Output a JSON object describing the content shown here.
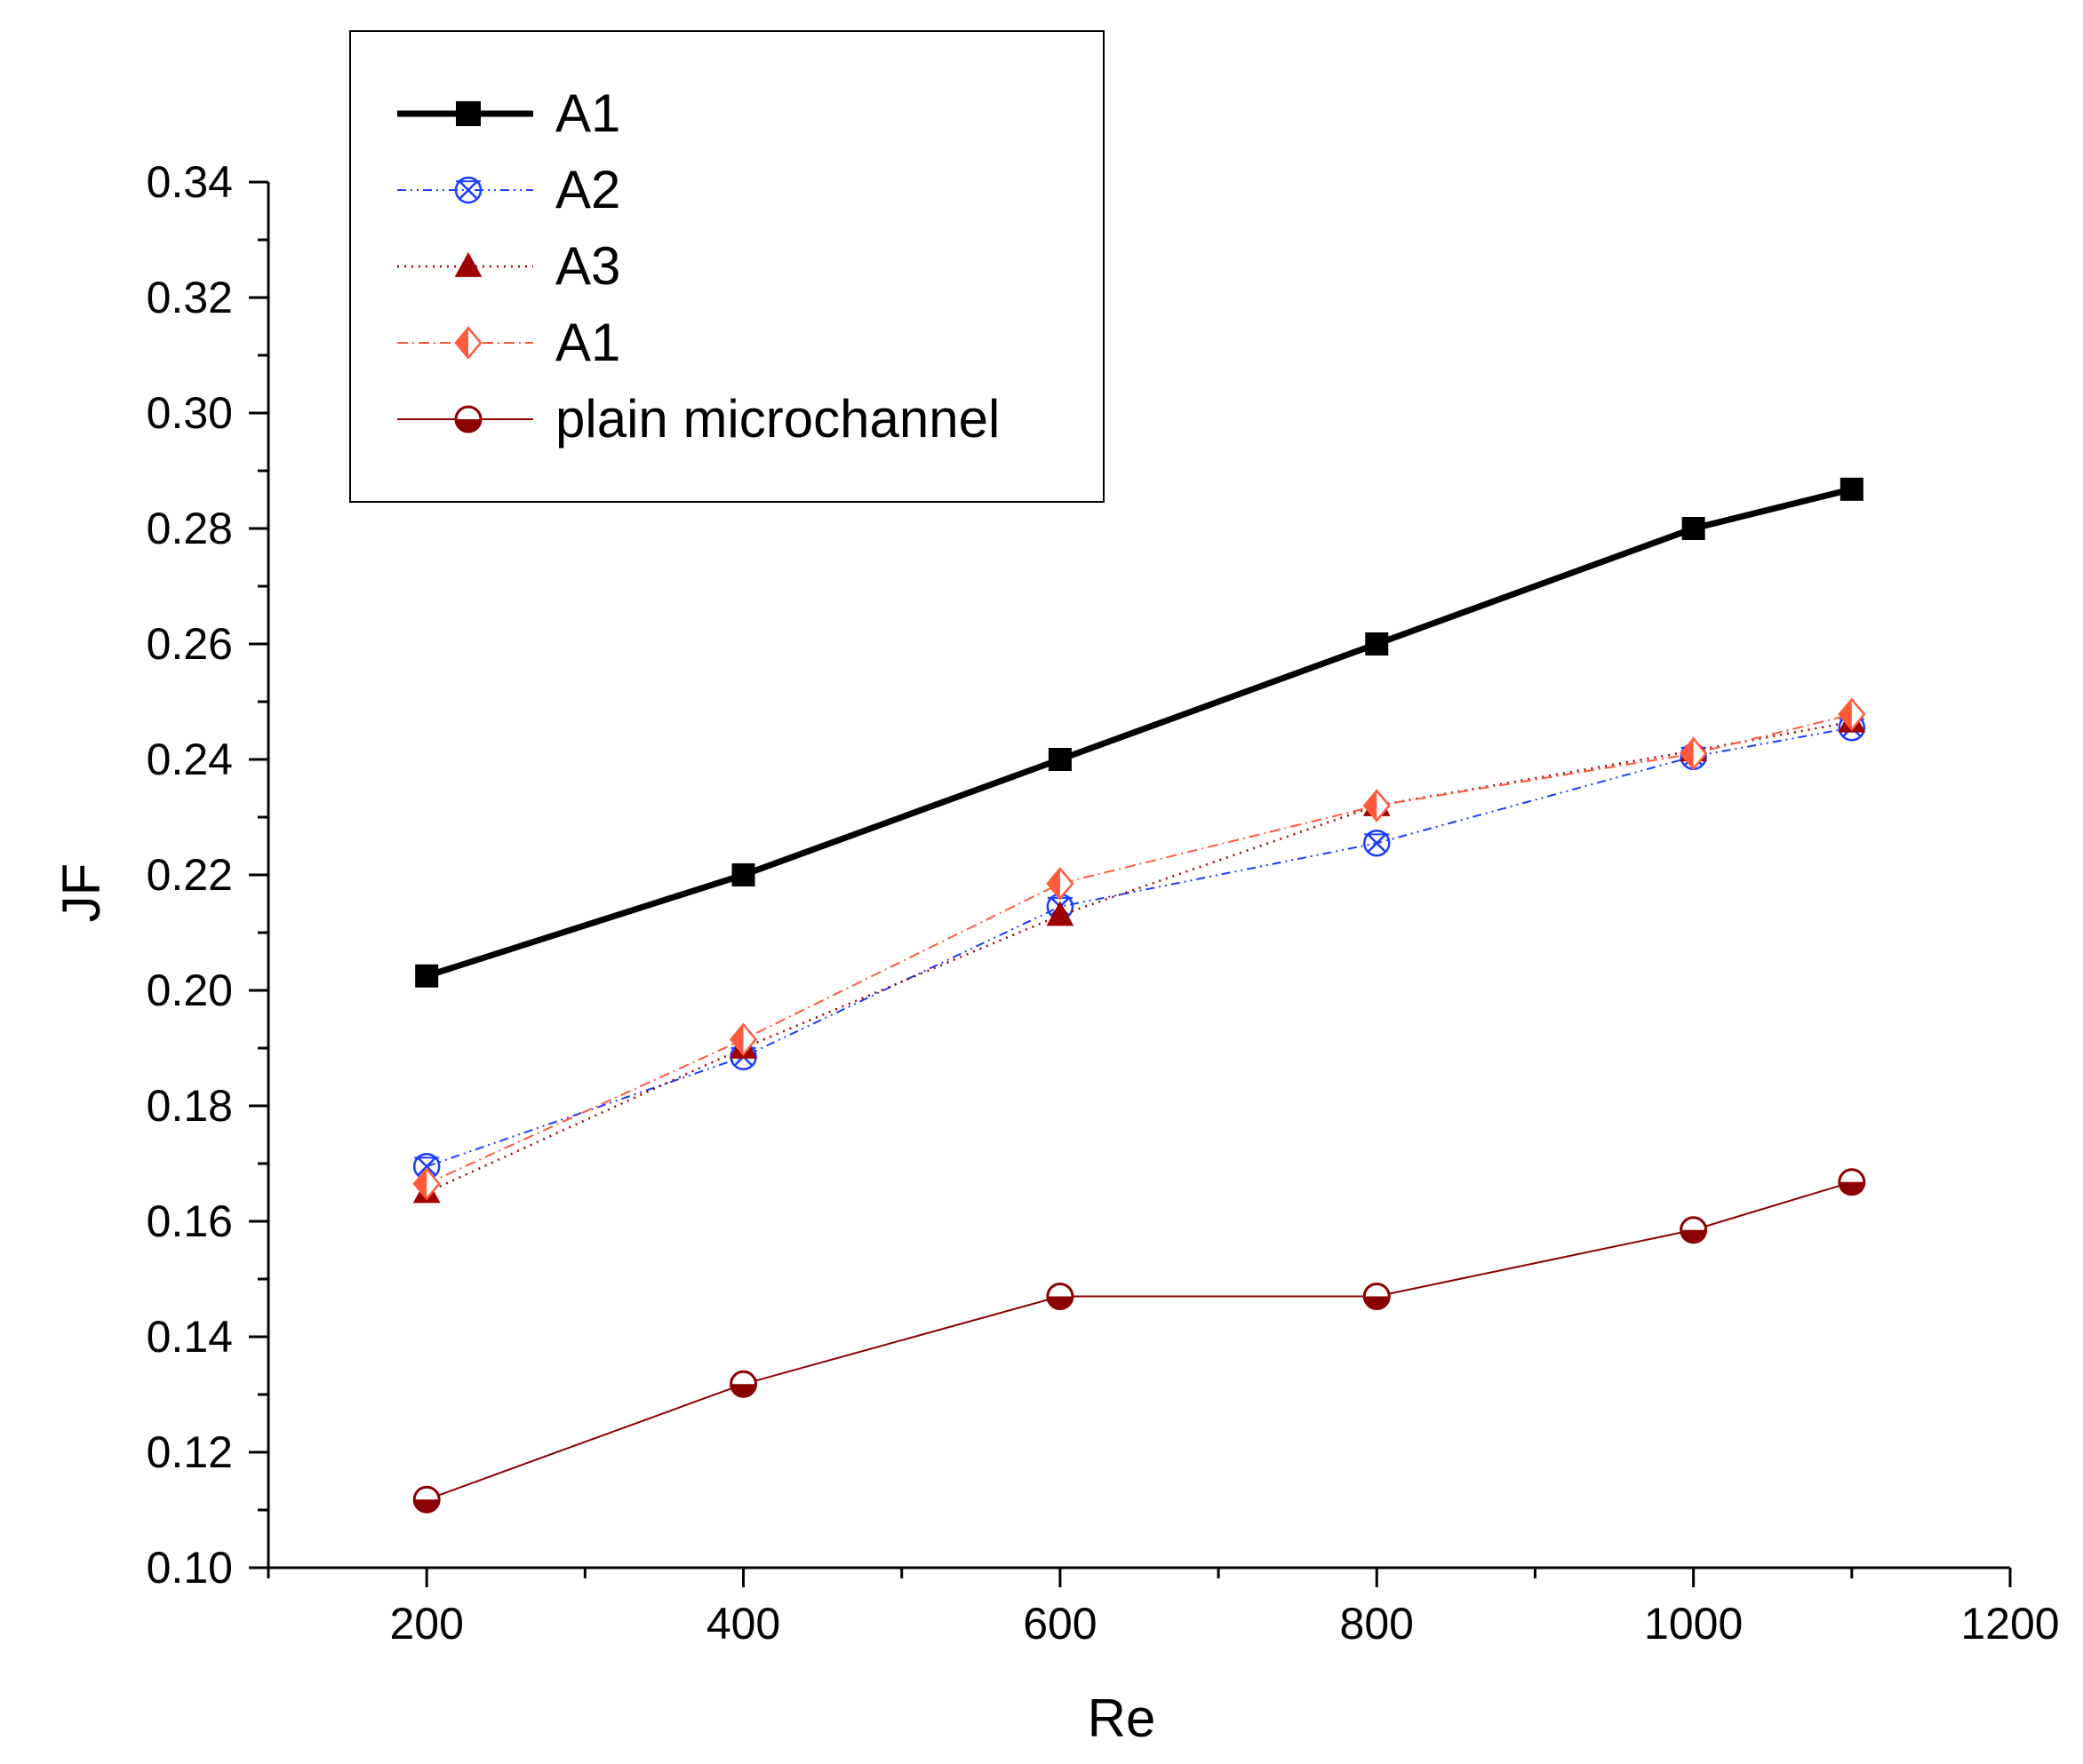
{
  "chart_data": {
    "type": "line",
    "title": "",
    "xlabel": "Re",
    "ylabel": "JF",
    "xlim": [
      100,
      1200
    ],
    "ylim": [
      0.1,
      0.34
    ],
    "x_ticks": [
      200,
      400,
      600,
      800,
      1000,
      1200
    ],
    "x_tick_labels": [
      "200",
      "400",
      "600",
      "800",
      "1000",
      "1200"
    ],
    "y_ticks": [
      0.1,
      0.12,
      0.14,
      0.16,
      0.18,
      0.2,
      0.22,
      0.24,
      0.26,
      0.28,
      0.3,
      0.32,
      0.34
    ],
    "y_tick_labels": [
      "0.10",
      "0.12",
      "0.14",
      "0.16",
      "0.18",
      "0.20",
      "0.22",
      "0.24",
      "0.26",
      "0.28",
      "0.30",
      "0.32",
      "0.34"
    ],
    "grid": false,
    "legend_position": "top-left",
    "x": [
      200,
      400,
      600,
      800,
      1000,
      1100
    ],
    "series": [
      {
        "name": "A1",
        "color": "#000000",
        "marker": "square",
        "line_style": "solid-thick",
        "values": [
          0.2025,
          0.22,
          0.24,
          0.26,
          0.28,
          0.2868
        ]
      },
      {
        "name": "A2",
        "color": "#1a3cff",
        "marker": "crossed-circle",
        "line_style": "dash-dot-dot",
        "values": [
          0.1695,
          0.1885,
          0.2145,
          0.2255,
          0.2405,
          0.2455
        ]
      },
      {
        "name": "A3",
        "color": "#a00000",
        "marker": "triangle",
        "line_style": "dotted",
        "values": [
          0.165,
          0.19,
          0.213,
          0.232,
          0.2415,
          0.2465
        ]
      },
      {
        "name": "A1",
        "color": "#ff5a3c",
        "marker": "half-diamond",
        "line_style": "dash-dot",
        "values": [
          0.1665,
          0.1915,
          0.2185,
          0.232,
          0.241,
          0.2478
        ]
      },
      {
        "name": "plain microchannel",
        "color": "#8b0000",
        "marker": "half-circle",
        "line_style": "solid-thin",
        "values": [
          0.1118,
          0.1318,
          0.147,
          0.147,
          0.1585,
          0.1668
        ]
      }
    ]
  }
}
